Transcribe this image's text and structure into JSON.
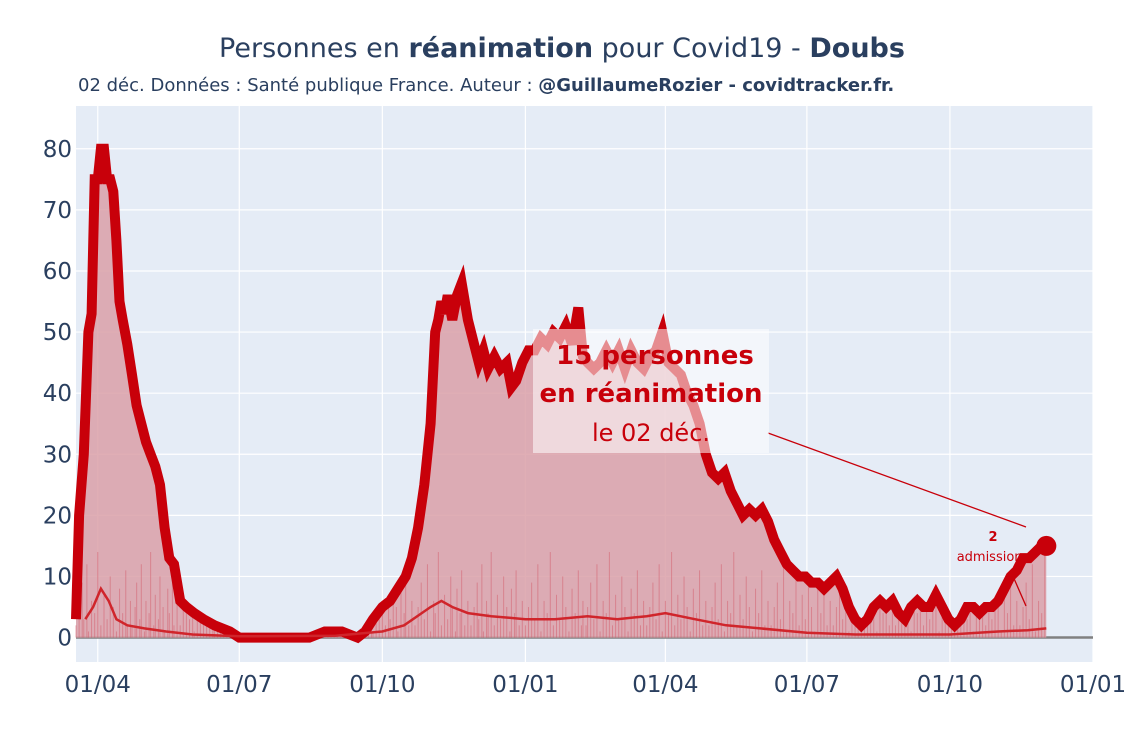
{
  "title": {
    "prefix": "Personnes en ",
    "bold1": "réanimation",
    "middle": " pour Covid19 - ",
    "bold2": "Doubs"
  },
  "subtitle": {
    "prefix": "02 déc. Données : Santé publique France. Auteur : ",
    "bold": "@GuillaumeRozier - covidtracker.fr."
  },
  "annotation": {
    "line1": "15 personnes",
    "line2": "en réanimation",
    "line3": "le 02 déc."
  },
  "admissions": {
    "value": "2",
    "label": "admissions"
  },
  "colors": {
    "plot_bg": "#e5ecf6",
    "main_line": "#c8000a",
    "area_fill": "#dba0a8",
    "admissions_line": "#d0252b",
    "grid": "#ffffff",
    "text": "#2a3f5f"
  },
  "chart_data": {
    "type": "line",
    "title": "Personnes en réanimation pour Covid19 - Doubs",
    "x_tick_labels": [
      "01/04",
      "01/07",
      "01/10",
      "01/01",
      "01/04",
      "01/07",
      "01/10",
      "01/01"
    ],
    "x_tick_dates": [
      "2020-04-01",
      "2020-07-01",
      "2020-10-01",
      "2021-01-01",
      "2021-04-01",
      "2021-07-01",
      "2021-10-01",
      "2022-01-01"
    ],
    "xlim": [
      "2020-03-18",
      "2022-01-01"
    ],
    "ylim": [
      -4,
      87
    ],
    "y_ticks": [
      0,
      10,
      20,
      30,
      40,
      50,
      60,
      70,
      80
    ],
    "grid": true,
    "series": [
      {
        "role": "reanimation",
        "points": [
          [
            "2020-03-18",
            3
          ],
          [
            "2020-03-20",
            20
          ],
          [
            "2020-03-23",
            30
          ],
          [
            "2020-03-26",
            50
          ],
          [
            "2020-03-28",
            53
          ],
          [
            "2020-03-30",
            75
          ],
          [
            "2020-04-01",
            75
          ],
          [
            "2020-04-03",
            80
          ],
          [
            "2020-04-05",
            80
          ],
          [
            "2020-04-07",
            75
          ],
          [
            "2020-04-09",
            75
          ],
          [
            "2020-04-11",
            73
          ],
          [
            "2020-04-13",
            65
          ],
          [
            "2020-04-15",
            55
          ],
          [
            "2020-04-17",
            52
          ],
          [
            "2020-04-20",
            48
          ],
          [
            "2020-04-23",
            43
          ],
          [
            "2020-04-26",
            38
          ],
          [
            "2020-04-29",
            35
          ],
          [
            "2020-05-02",
            32
          ],
          [
            "2020-05-05",
            30
          ],
          [
            "2020-05-08",
            28
          ],
          [
            "2020-05-11",
            25
          ],
          [
            "2020-05-14",
            18
          ],
          [
            "2020-05-17",
            13
          ],
          [
            "2020-05-20",
            12
          ],
          [
            "2020-05-24",
            6
          ],
          [
            "2020-05-28",
            5
          ],
          [
            "2020-06-02",
            4
          ],
          [
            "2020-06-08",
            3
          ],
          [
            "2020-06-15",
            2
          ],
          [
            "2020-06-25",
            1
          ],
          [
            "2020-07-01",
            0
          ],
          [
            "2020-07-20",
            0
          ],
          [
            "2020-08-15",
            0
          ],
          [
            "2020-08-25",
            1
          ],
          [
            "2020-09-05",
            1
          ],
          [
            "2020-09-15",
            0
          ],
          [
            "2020-09-20",
            1
          ],
          [
            "2020-09-25",
            3
          ],
          [
            "2020-10-01",
            5
          ],
          [
            "2020-10-06",
            6
          ],
          [
            "2020-10-11",
            8
          ],
          [
            "2020-10-16",
            10
          ],
          [
            "2020-10-20",
            13
          ],
          [
            "2020-10-24",
            18
          ],
          [
            "2020-10-28",
            25
          ],
          [
            "2020-11-01",
            35
          ],
          [
            "2020-11-04",
            50
          ],
          [
            "2020-11-06",
            52
          ],
          [
            "2020-11-08",
            55
          ],
          [
            "2020-11-10",
            53
          ],
          [
            "2020-11-12",
            56
          ],
          [
            "2020-11-15",
            52
          ],
          [
            "2020-11-18",
            56
          ],
          [
            "2020-11-21",
            58
          ],
          [
            "2020-11-25",
            52
          ],
          [
            "2020-11-29",
            48
          ],
          [
            "2020-12-02",
            45
          ],
          [
            "2020-12-05",
            47
          ],
          [
            "2020-12-08",
            44
          ],
          [
            "2020-12-12",
            46
          ],
          [
            "2020-12-16",
            44
          ],
          [
            "2020-12-20",
            45
          ],
          [
            "2020-12-23",
            41
          ],
          [
            "2020-12-26",
            42
          ],
          [
            "2020-12-30",
            45
          ],
          [
            "2021-01-03",
            47
          ],
          [
            "2021-01-07",
            47
          ],
          [
            "2021-01-11",
            49
          ],
          [
            "2021-01-15",
            48
          ],
          [
            "2021-01-19",
            50
          ],
          [
            "2021-01-23",
            49
          ],
          [
            "2021-01-27",
            51
          ],
          [
            "2021-01-31",
            48
          ],
          [
            "2021-02-04",
            54
          ],
          [
            "2021-02-07",
            46
          ],
          [
            "2021-02-10",
            45
          ],
          [
            "2021-02-14",
            44
          ],
          [
            "2021-02-18",
            45
          ],
          [
            "2021-02-22",
            47
          ],
          [
            "2021-02-26",
            45
          ],
          [
            "2021-03-02",
            47
          ],
          [
            "2021-03-06",
            44
          ],
          [
            "2021-03-10",
            47
          ],
          [
            "2021-03-14",
            45
          ],
          [
            "2021-03-18",
            44
          ],
          [
            "2021-03-22",
            46
          ],
          [
            "2021-03-26",
            47
          ],
          [
            "2021-03-30",
            50
          ],
          [
            "2021-04-03",
            45
          ],
          [
            "2021-04-07",
            44
          ],
          [
            "2021-04-11",
            43
          ],
          [
            "2021-04-15",
            40
          ],
          [
            "2021-04-19",
            38
          ],
          [
            "2021-04-23",
            35
          ],
          [
            "2021-04-27",
            30
          ],
          [
            "2021-05-01",
            27
          ],
          [
            "2021-05-05",
            26
          ],
          [
            "2021-05-09",
            27
          ],
          [
            "2021-05-13",
            24
          ],
          [
            "2021-05-17",
            22
          ],
          [
            "2021-05-21",
            20
          ],
          [
            "2021-05-25",
            21
          ],
          [
            "2021-05-29",
            20
          ],
          [
            "2021-06-02",
            21
          ],
          [
            "2021-06-06",
            19
          ],
          [
            "2021-06-10",
            16
          ],
          [
            "2021-06-14",
            14
          ],
          [
            "2021-06-18",
            12
          ],
          [
            "2021-06-22",
            11
          ],
          [
            "2021-06-26",
            10
          ],
          [
            "2021-06-30",
            10
          ],
          [
            "2021-07-04",
            9
          ],
          [
            "2021-07-08",
            9
          ],
          [
            "2021-07-12",
            8
          ],
          [
            "2021-07-16",
            9
          ],
          [
            "2021-07-20",
            10
          ],
          [
            "2021-07-24",
            8
          ],
          [
            "2021-07-28",
            5
          ],
          [
            "2021-08-01",
            3
          ],
          [
            "2021-08-05",
            2
          ],
          [
            "2021-08-09",
            3
          ],
          [
            "2021-08-13",
            5
          ],
          [
            "2021-08-17",
            6
          ],
          [
            "2021-08-21",
            5
          ],
          [
            "2021-08-25",
            6
          ],
          [
            "2021-08-29",
            4
          ],
          [
            "2021-09-02",
            3
          ],
          [
            "2021-09-06",
            5
          ],
          [
            "2021-09-10",
            6
          ],
          [
            "2021-09-14",
            5
          ],
          [
            "2021-09-18",
            5
          ],
          [
            "2021-09-22",
            7
          ],
          [
            "2021-09-26",
            5
          ],
          [
            "2021-09-30",
            3
          ],
          [
            "2021-10-04",
            2
          ],
          [
            "2021-10-08",
            3
          ],
          [
            "2021-10-12",
            5
          ],
          [
            "2021-10-16",
            5
          ],
          [
            "2021-10-20",
            4
          ],
          [
            "2021-10-24",
            5
          ],
          [
            "2021-10-28",
            5
          ],
          [
            "2021-11-01",
            6
          ],
          [
            "2021-11-05",
            8
          ],
          [
            "2021-11-09",
            10
          ],
          [
            "2021-11-13",
            11
          ],
          [
            "2021-11-17",
            13
          ],
          [
            "2021-11-21",
            13
          ],
          [
            "2021-11-25",
            14
          ],
          [
            "2021-11-29",
            15
          ],
          [
            "2021-12-02",
            15
          ]
        ]
      },
      {
        "role": "admissions",
        "points": [
          [
            "2020-03-24",
            3
          ],
          [
            "2020-03-29",
            5
          ],
          [
            "2020-04-03",
            8
          ],
          [
            "2020-04-08",
            6
          ],
          [
            "2020-04-13",
            3
          ],
          [
            "2020-04-20",
            2
          ],
          [
            "2020-05-01",
            1.5
          ],
          [
            "2020-05-15",
            1
          ],
          [
            "2020-06-01",
            0.5
          ],
          [
            "2020-07-01",
            0.2
          ],
          [
            "2020-09-01",
            0.3
          ],
          [
            "2020-10-01",
            1
          ],
          [
            "2020-10-15",
            2
          ],
          [
            "2020-11-01",
            5
          ],
          [
            "2020-11-08",
            6
          ],
          [
            "2020-11-15",
            5
          ],
          [
            "2020-11-25",
            4
          ],
          [
            "2020-12-10",
            3.5
          ],
          [
            "2021-01-01",
            3
          ],
          [
            "2021-01-20",
            3
          ],
          [
            "2021-02-10",
            3.5
          ],
          [
            "2021-03-01",
            3
          ],
          [
            "2021-03-20",
            3.5
          ],
          [
            "2021-04-01",
            4
          ],
          [
            "2021-04-20",
            3
          ],
          [
            "2021-05-10",
            2
          ],
          [
            "2021-06-01",
            1.5
          ],
          [
            "2021-07-01",
            0.8
          ],
          [
            "2021-08-01",
            0.5
          ],
          [
            "2021-09-01",
            0.5
          ],
          [
            "2021-10-01",
            0.5
          ],
          [
            "2021-11-01",
            1
          ],
          [
            "2021-11-20",
            1.2
          ],
          [
            "2021-12-02",
            1.5
          ]
        ]
      }
    ]
  }
}
